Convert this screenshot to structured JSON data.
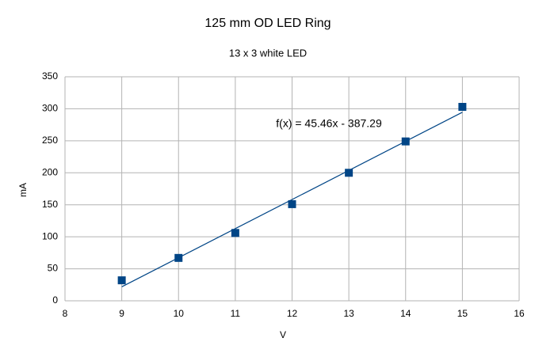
{
  "chart_data": {
    "type": "scatter",
    "title": "125 mm OD LED Ring",
    "subtitle": "13 x 3 white LED",
    "x_label": "V",
    "y_label": "mA",
    "x": [
      9,
      10,
      11,
      12,
      13,
      14,
      15
    ],
    "series": [
      {
        "color": "#004586",
        "values": [
          32,
          67,
          106,
          151,
          200,
          249,
          303
        ]
      }
    ],
    "trendline": {
      "slope": 45.46,
      "intercept": -387.29,
      "label": "f(x) = 45.46x - 387.29",
      "color": "#004586"
    },
    "xlim": [
      8,
      16
    ],
    "xticks": [
      8,
      9,
      10,
      11,
      12,
      13,
      14,
      15,
      16
    ],
    "ylim": [
      0,
      350
    ],
    "yticks": [
      0,
      50,
      100,
      150,
      200,
      250,
      300,
      350
    ],
    "grid": true
  }
}
